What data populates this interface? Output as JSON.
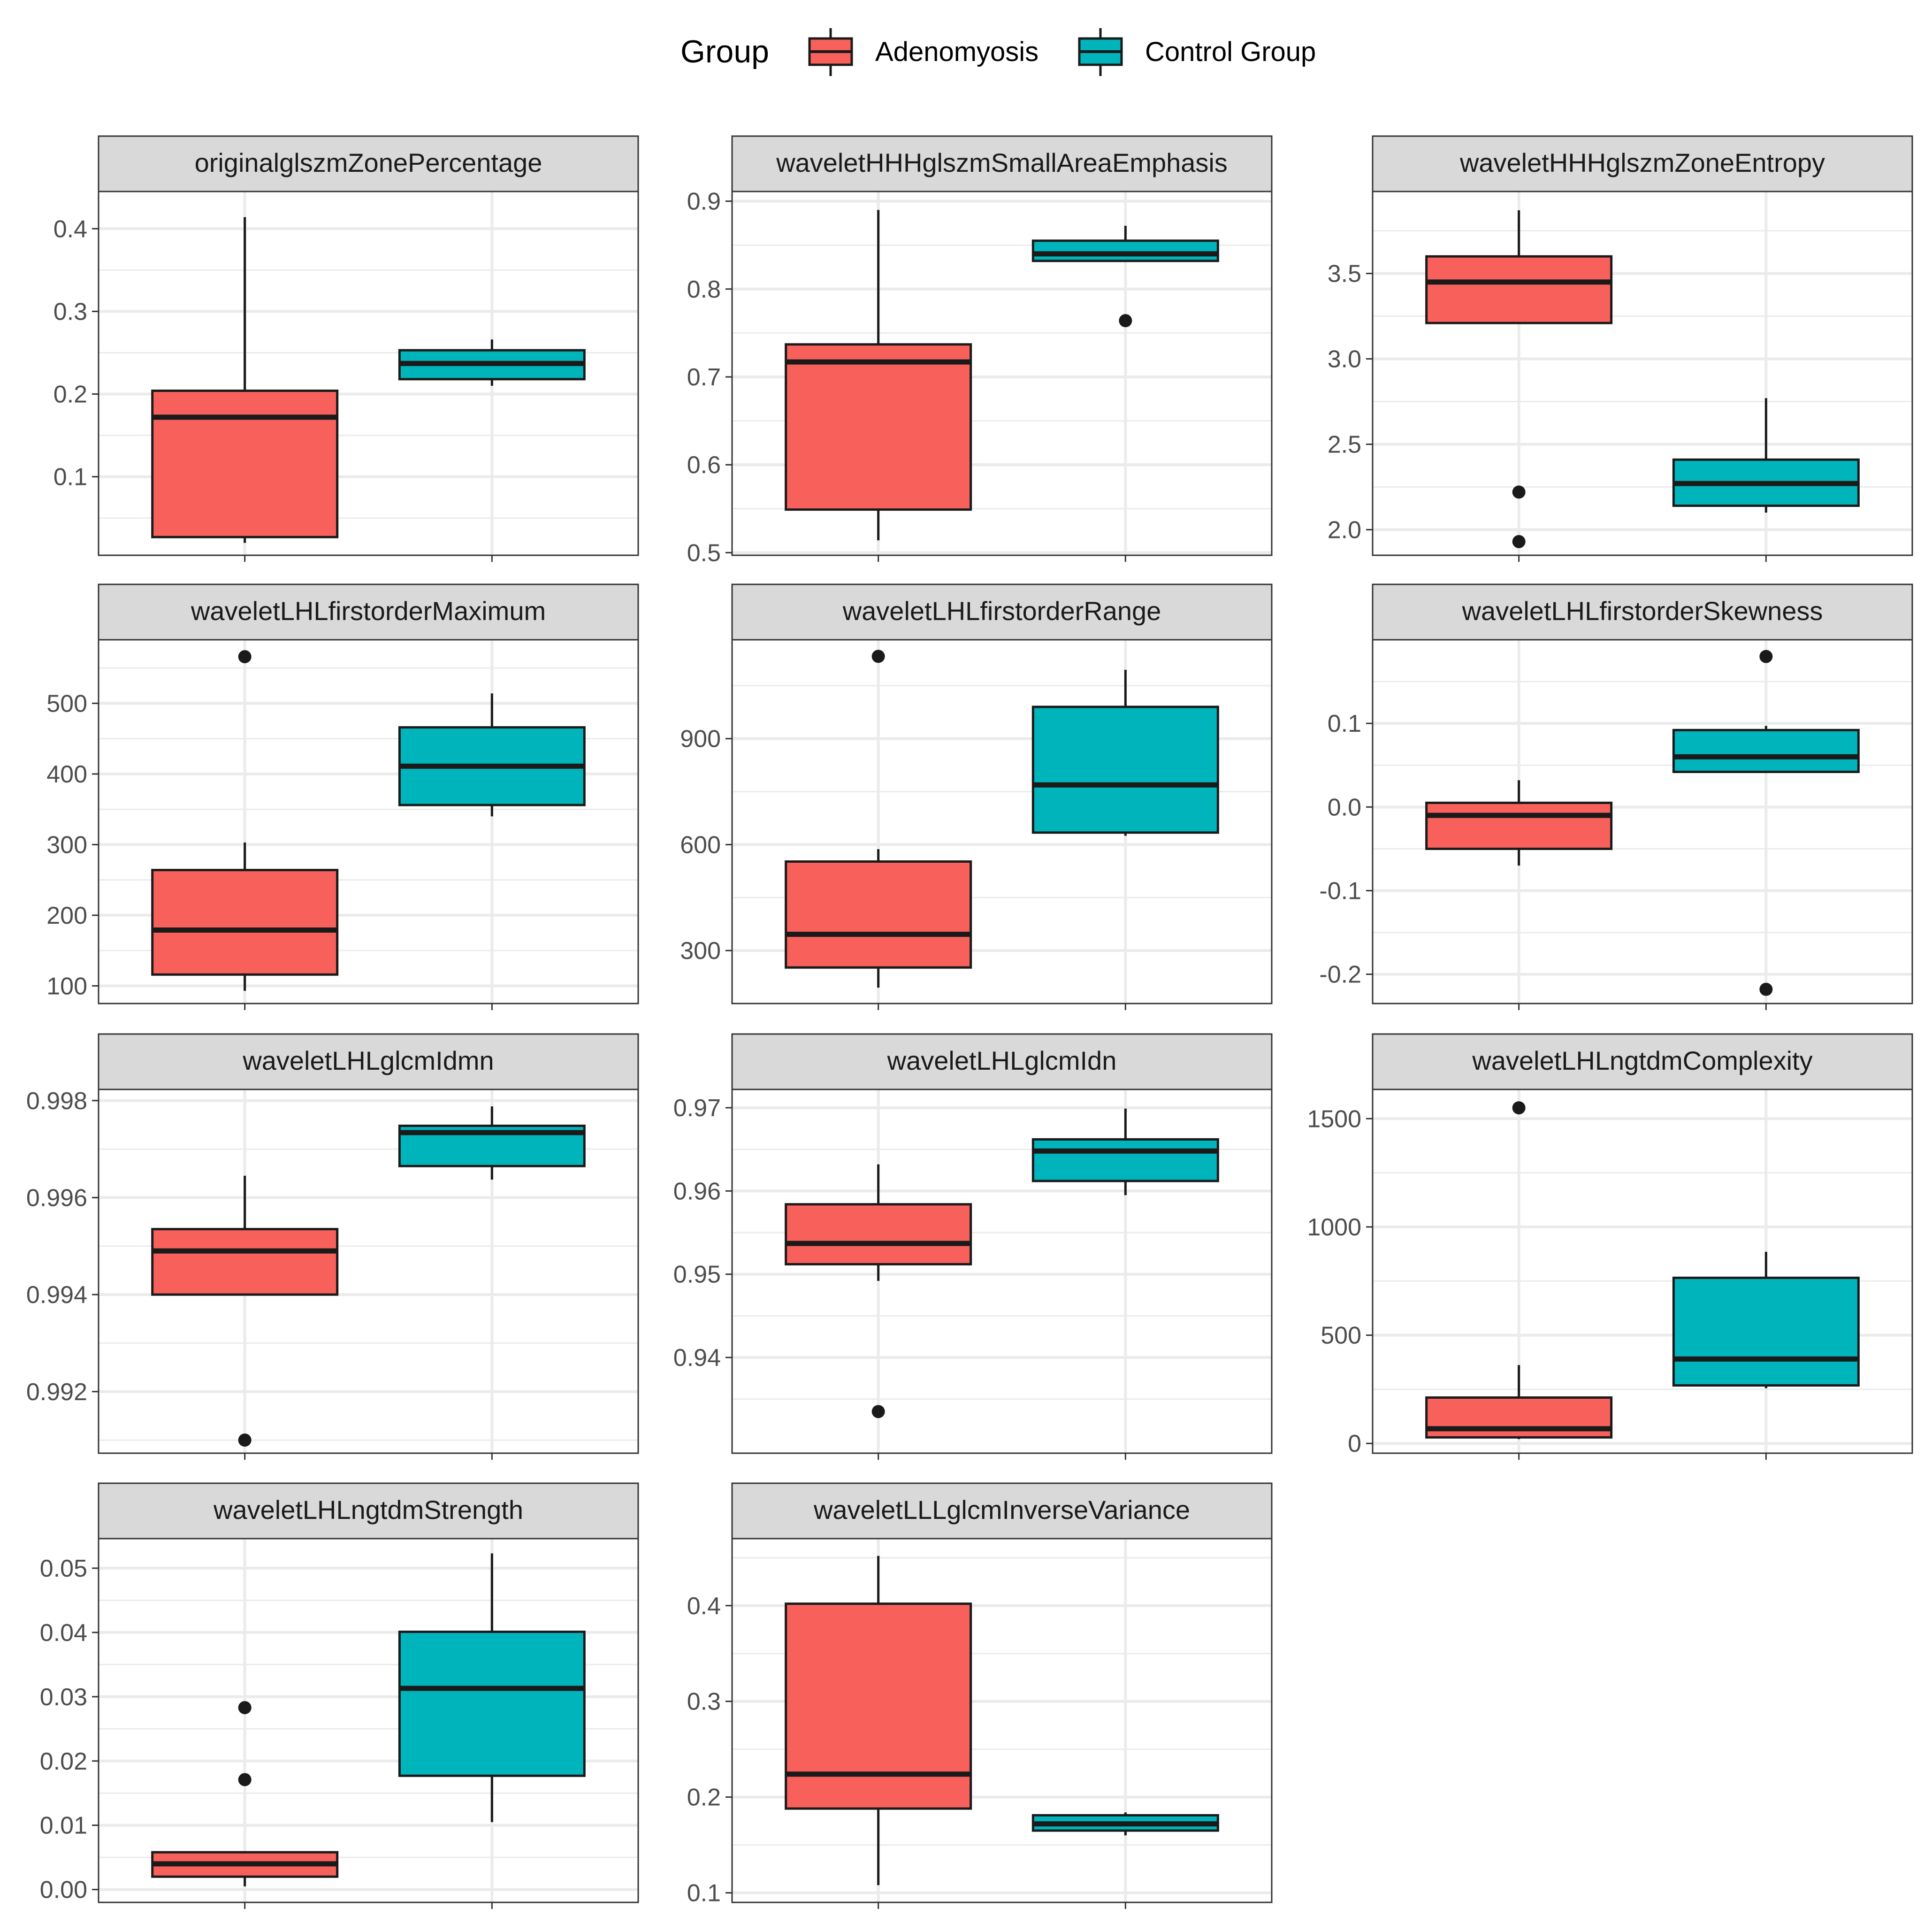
{
  "chart_data": {
    "type": "boxplot",
    "facet_layout": "3 columns, 4 rows",
    "legend": {
      "title": "Group",
      "position": "top",
      "entries": [
        {
          "label": "Adenomyosis",
          "color": "#F8605B"
        },
        {
          "label": "Control Group",
          "color": "#00B4BC"
        }
      ]
    },
    "groups": [
      "Adenomyosis",
      "Control Group"
    ],
    "colors": {
      "Adenomyosis": "#F8605B",
      "Control Group": "#00B4BC",
      "grid": "#EBEBEB",
      "strip": "#D9D9D9",
      "frame": "#333333"
    },
    "panels": [
      {
        "title": "originalglszmZonePercentage",
        "ylim": [
          0.005,
          0.445
        ],
        "yticks": [
          0.1,
          0.2,
          0.3,
          0.4
        ],
        "tick_labels": [
          "0.1",
          "0.2",
          "0.3",
          "0.4"
        ],
        "boxes": [
          {
            "group": "Adenomyosis",
            "min": 0.02,
            "q1": 0.027,
            "median": 0.172,
            "q3": 0.204,
            "max": 0.414,
            "outliers": []
          },
          {
            "group": "Control Group",
            "min": 0.21,
            "q1": 0.218,
            "median": 0.237,
            "q3": 0.253,
            "max": 0.266,
            "outliers": []
          }
        ]
      },
      {
        "title": "waveletHHHglszmSmallAreaEmphasis",
        "ylim": [
          0.497,
          0.911
        ],
        "yticks": [
          0.5,
          0.6,
          0.7,
          0.8,
          0.9
        ],
        "tick_labels": [
          "0.5",
          "0.6",
          "0.7",
          "0.8",
          "0.9"
        ],
        "boxes": [
          {
            "group": "Adenomyosis",
            "min": 0.514,
            "q1": 0.549,
            "median": 0.717,
            "q3": 0.737,
            "max": 0.89,
            "outliers": []
          },
          {
            "group": "Control Group",
            "min": 0.832,
            "q1": 0.832,
            "median": 0.84,
            "q3": 0.855,
            "max": 0.872,
            "outliers": [
              0.764
            ]
          }
        ]
      },
      {
        "title": "waveletHHHglszmZoneEntropy",
        "ylim": [
          1.85,
          3.98
        ],
        "yticks": [
          2.0,
          2.5,
          3.0,
          3.5
        ],
        "tick_labels": [
          "2.0",
          "2.5",
          "3.0",
          "3.5"
        ],
        "boxes": [
          {
            "group": "Adenomyosis",
            "min": 3.21,
            "q1": 3.21,
            "median": 3.45,
            "q3": 3.6,
            "max": 3.87,
            "outliers": [
              2.22,
              1.93
            ]
          },
          {
            "group": "Control Group",
            "min": 2.1,
            "q1": 2.14,
            "median": 2.27,
            "q3": 2.41,
            "max": 2.77,
            "outliers": []
          }
        ]
      },
      {
        "title": "waveletLHLfirstorderMaximum",
        "ylim": [
          75,
          590
        ],
        "yticks": [
          100,
          200,
          300,
          400,
          500
        ],
        "tick_labels": [
          "100",
          "200",
          "300",
          "400",
          "500"
        ],
        "boxes": [
          {
            "group": "Adenomyosis",
            "min": 93,
            "q1": 116,
            "median": 179,
            "q3": 264,
            "max": 303,
            "outliers": [
              566
            ]
          },
          {
            "group": "Control Group",
            "min": 340,
            "q1": 356,
            "median": 411,
            "q3": 466,
            "max": 514,
            "outliers": []
          }
        ]
      },
      {
        "title": "waveletLHLfirstorderRange",
        "ylim": [
          150,
          1180
        ],
        "yticks": [
          300,
          600,
          900
        ],
        "tick_labels": [
          "300",
          "600",
          "900"
        ],
        "boxes": [
          {
            "group": "Adenomyosis",
            "min": 195,
            "q1": 252,
            "median": 346,
            "q3": 552,
            "max": 587,
            "outliers": [
              1133
            ]
          },
          {
            "group": "Control Group",
            "min": 625,
            "q1": 634,
            "median": 769,
            "q3": 990,
            "max": 1095,
            "outliers": []
          }
        ]
      },
      {
        "title": "waveletLHLfirstorderSkewness",
        "ylim": [
          -0.235,
          0.2
        ],
        "yticks": [
          -0.2,
          -0.1,
          0.0,
          0.1
        ],
        "tick_labels": [
          "-0.2",
          "-0.1",
          "0.0",
          "0.1"
        ],
        "boxes": [
          {
            "group": "Adenomyosis",
            "min": -0.07,
            "q1": -0.05,
            "median": -0.01,
            "q3": 0.005,
            "max": 0.032,
            "outliers": []
          },
          {
            "group": "Control Group",
            "min": 0.042,
            "q1": 0.042,
            "median": 0.06,
            "q3": 0.092,
            "max": 0.097,
            "outliers": [
              0.18,
              -0.218
            ]
          }
        ]
      },
      {
        "title": "waveletLHLglcmIdmn",
        "ylim": [
          0.99073,
          0.99823
        ],
        "yticks": [
          0.992,
          0.994,
          0.996,
          0.998
        ],
        "tick_labels": [
          "0.992",
          "0.994",
          "0.996",
          "0.998"
        ],
        "boxes": [
          {
            "group": "Adenomyosis",
            "min": 0.994,
            "q1": 0.994,
            "median": 0.9949,
            "q3": 0.99535,
            "max": 0.99645,
            "outliers": [
              0.991
            ]
          },
          {
            "group": "Control Group",
            "min": 0.99637,
            "q1": 0.99665,
            "median": 0.99734,
            "q3": 0.99748,
            "max": 0.99788,
            "outliers": []
          }
        ]
      },
      {
        "title": "waveletLHLglcmIdn",
        "ylim": [
          0.9285,
          0.9722
        ],
        "yticks": [
          0.94,
          0.95,
          0.96,
          0.97
        ],
        "tick_labels": [
          "0.94",
          "0.95",
          "0.96",
          "0.97"
        ],
        "boxes": [
          {
            "group": "Adenomyosis",
            "min": 0.9492,
            "q1": 0.9512,
            "median": 0.9537,
            "q3": 0.9584,
            "max": 0.9632,
            "outliers": [
              0.9335
            ]
          },
          {
            "group": "Control Group",
            "min": 0.9595,
            "q1": 0.9612,
            "median": 0.9648,
            "q3": 0.9662,
            "max": 0.9699,
            "outliers": []
          }
        ]
      },
      {
        "title": "waveletLHLngtdmComplexity",
        "ylim": [
          -45,
          1635
        ],
        "yticks": [
          0,
          500,
          1000,
          1500
        ],
        "tick_labels": [
          "0",
          "500",
          "1000",
          "1500"
        ],
        "boxes": [
          {
            "group": "Adenomyosis",
            "min": 20,
            "q1": 28,
            "median": 68,
            "q3": 212,
            "max": 362,
            "outliers": [
              1550
            ]
          },
          {
            "group": "Control Group",
            "min": 255,
            "q1": 268,
            "median": 390,
            "q3": 765,
            "max": 885,
            "outliers": []
          }
        ]
      },
      {
        "title": "waveletLHLngtdmStrength",
        "ylim": [
          -0.002,
          0.0546
        ],
        "yticks": [
          0.0,
          0.01,
          0.02,
          0.03,
          0.04,
          0.05
        ],
        "tick_labels": [
          "0.00",
          "0.01",
          "0.02",
          "0.03",
          "0.04",
          "0.05"
        ],
        "boxes": [
          {
            "group": "Adenomyosis",
            "min": 0.0005,
            "q1": 0.002,
            "median": 0.004,
            "q3": 0.0058,
            "max": 0.0058,
            "outliers": [
              0.0283,
              0.0171
            ]
          },
          {
            "group": "Control Group",
            "min": 0.0105,
            "q1": 0.0177,
            "median": 0.0313,
            "q3": 0.0401,
            "max": 0.0523,
            "outliers": []
          }
        ]
      },
      {
        "title": "waveletLLLglcmInverseVariance",
        "ylim": [
          0.09,
          0.47
        ],
        "yticks": [
          0.1,
          0.2,
          0.3,
          0.4
        ],
        "tick_labels": [
          "0.1",
          "0.2",
          "0.3",
          "0.4"
        ],
        "boxes": [
          {
            "group": "Adenomyosis",
            "min": 0.108,
            "q1": 0.188,
            "median": 0.224,
            "q3": 0.402,
            "max": 0.452,
            "outliers": []
          },
          {
            "group": "Control Group",
            "min": 0.16,
            "q1": 0.165,
            "median": 0.172,
            "q3": 0.181,
            "max": 0.184,
            "outliers": []
          }
        ]
      }
    ]
  }
}
